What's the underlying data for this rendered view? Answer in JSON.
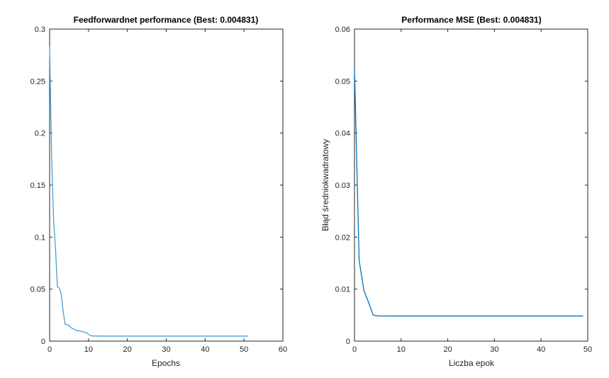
{
  "chart_data": [
    {
      "type": "line",
      "title": "Feedforwardnet performance (Best: 0.004831)",
      "xlabel": "Epochs",
      "ylabel": "",
      "xlim": [
        0,
        60
      ],
      "ylim": [
        0,
        0.3
      ],
      "xticks": [
        0,
        10,
        20,
        30,
        40,
        50,
        60
      ],
      "yticks": [
        0,
        0.05,
        0.1,
        0.15,
        0.2,
        0.25,
        0.3
      ],
      "xtick_labels": [
        "0",
        "10",
        "20",
        "30",
        "40",
        "50",
        "60"
      ],
      "ytick_labels": [
        "0",
        "0.05",
        "0.1",
        "0.15",
        "0.2",
        "0.25",
        "0.3"
      ],
      "grid": false,
      "series": [
        {
          "color": "#4a9fd4",
          "x": [
            0,
            0.5,
            1,
            1.5,
            2,
            2.5,
            3,
            3.5,
            4,
            4.5,
            5,
            5.5,
            6,
            6.5,
            7,
            7.5,
            8,
            8.5,
            9,
            9.5,
            10,
            10.5,
            11,
            15,
            20,
            25,
            30,
            35,
            40,
            45,
            51
          ],
          "y": [
            0.283,
            0.18,
            0.118,
            0.09,
            0.052,
            0.051,
            0.045,
            0.028,
            0.016,
            0.016,
            0.015,
            0.013,
            0.012,
            0.011,
            0.01,
            0.01,
            0.0095,
            0.009,
            0.0085,
            0.008,
            0.0065,
            0.0055,
            0.0049,
            0.00483,
            0.00483,
            0.00483,
            0.00483,
            0.00483,
            0.00483,
            0.00483,
            0.00483
          ]
        }
      ]
    },
    {
      "type": "line",
      "title": "Performance MSE (Best: 0.004831)",
      "xlabel": "Liczba epok",
      "ylabel": "Błąd średniokwadratowy",
      "xlim": [
        0,
        50
      ],
      "ylim": [
        0,
        0.06
      ],
      "xticks": [
        0,
        10,
        20,
        30,
        40,
        50
      ],
      "yticks": [
        0,
        0.01,
        0.02,
        0.03,
        0.04,
        0.05,
        0.06
      ],
      "xtick_labels": [
        "0",
        "10",
        "20",
        "30",
        "40",
        "50"
      ],
      "ytick_labels": [
        "0",
        "0.01",
        "0.02",
        "0.03",
        "0.04",
        "0.05",
        "0.06"
      ],
      "grid": false,
      "series": [
        {
          "color": "#0072bd",
          "x": [
            0,
            1,
            2,
            3,
            4,
            5,
            10,
            20,
            30,
            40,
            49
          ],
          "y": [
            0.0525,
            0.0155,
            0.0098,
            0.0075,
            0.005,
            0.00485,
            0.00483,
            0.00483,
            0.00483,
            0.00483,
            0.00483
          ]
        }
      ]
    }
  ]
}
